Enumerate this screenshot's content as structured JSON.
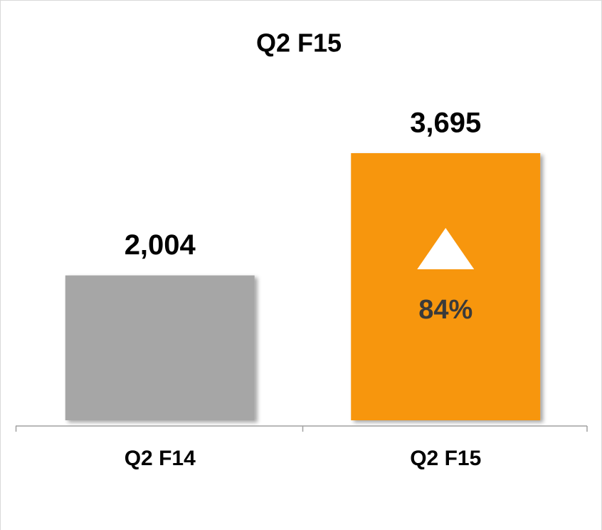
{
  "chart_data": {
    "type": "bar",
    "title": "Q2 F15",
    "categories": [
      "Q2 F14",
      "Q2 F15"
    ],
    "values": [
      2004,
      3695
    ],
    "value_labels": [
      "2,004",
      "3,695"
    ],
    "colors": [
      "#a6a6a6",
      "#f7960f"
    ],
    "annotation": "84%"
  }
}
